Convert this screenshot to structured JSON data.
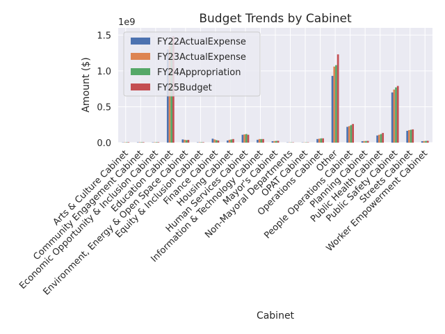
{
  "chart_data": {
    "type": "bar",
    "title": "Budget Trends by Cabinet",
    "xlabel": "Cabinet",
    "ylabel": "Amount ($)",
    "y_exponent_label": "1e9",
    "ylim": [
      0,
      1.6
    ],
    "y_ticks": [
      0.0,
      0.5,
      1.0,
      1.5
    ],
    "y_tick_labels": [
      "0.0",
      "0.5",
      "1.0",
      "1.5"
    ],
    "grid": true,
    "legend_position": "top-left",
    "categories": [
      "Arts & Culture Cabinet",
      "Community Engagement Cabinet",
      "Economic Opportunity & Inclusion Cabinet",
      "Education Cabinet",
      "Environment, Energy & Open Space Cabinet",
      "Equity & Inclusion Cabinet",
      "Finance Cabinet",
      "Housing Cabinet",
      "Human Services Cabinet",
      "Information & Technology Cabinet",
      "Mayor's Cabinet",
      "Non-Mayoral Departments",
      "OPAT Cabinet",
      "Operations Cabinet",
      "Other",
      "People Operations Cabinet",
      "Planning Cabinet",
      "Public Health Cabinet",
      "Public Safety Cabinet",
      "Streets Cabinet",
      "Worker Empowerment Cabinet"
    ],
    "series": [
      {
        "name": "FY22ActualExpense",
        "color": "#4c72b0",
        "values": [
          0.003,
          0.004,
          0.004,
          1.3,
          0.045,
          0.004,
          0.055,
          0.03,
          0.11,
          0.04,
          0.02,
          0.003,
          0.003,
          0.05,
          0.93,
          0.22,
          0.02,
          0.1,
          0.7,
          0.165,
          0.02
        ]
      },
      {
        "name": "FY23ActualExpense",
        "color": "#dd8452",
        "values": [
          0.004,
          0.005,
          0.005,
          1.35,
          0.04,
          0.005,
          0.045,
          0.04,
          0.115,
          0.05,
          0.022,
          0.003,
          0.003,
          0.055,
          1.06,
          0.23,
          0.022,
          0.11,
          0.74,
          0.175,
          0.022
        ]
      },
      {
        "name": "FY24Appropriation",
        "color": "#55a868",
        "values": [
          0.005,
          0.006,
          0.006,
          1.42,
          0.035,
          0.006,
          0.035,
          0.045,
          0.12,
          0.05,
          0.024,
          0.004,
          0.004,
          0.06,
          1.08,
          0.245,
          0.023,
          0.12,
          0.77,
          0.18,
          0.024
        ]
      },
      {
        "name": "FY25Budget",
        "color": "#c44e52",
        "values": [
          0.006,
          0.006,
          0.006,
          1.48,
          0.038,
          0.006,
          0.03,
          0.05,
          0.11,
          0.05,
          0.025,
          0.004,
          0.004,
          0.06,
          1.23,
          0.26,
          0.024,
          0.135,
          0.79,
          0.185,
          0.025
        ]
      }
    ]
  }
}
